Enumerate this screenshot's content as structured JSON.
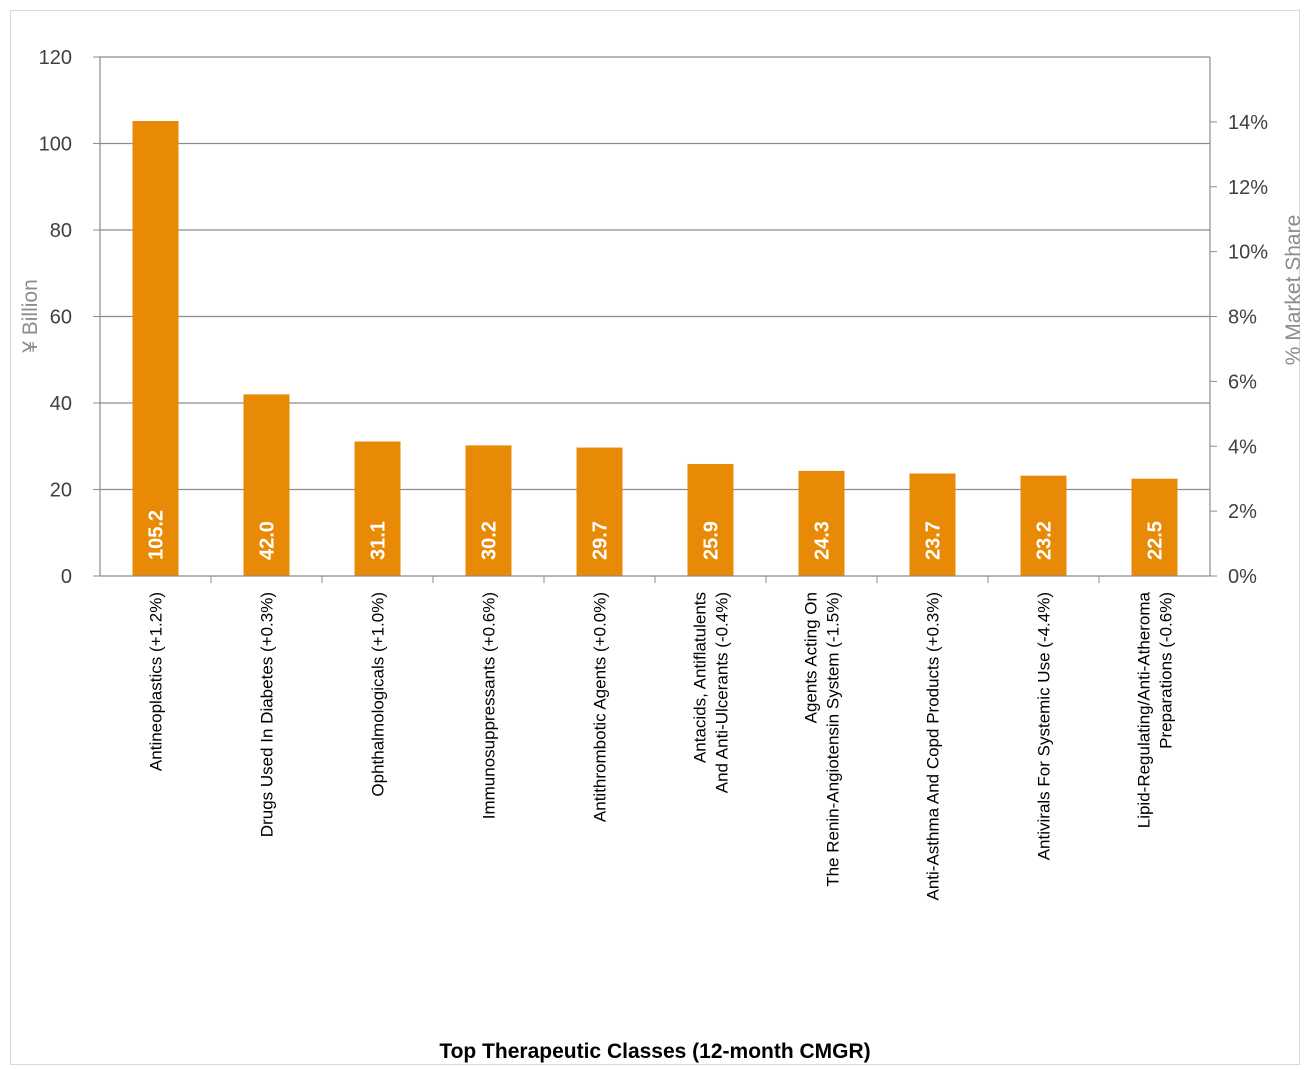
{
  "colors": {
    "bar": "#E98A06",
    "grid": "#8c8c8c",
    "axis_title": "#8c8c8c"
  },
  "chart_data": {
    "type": "bar",
    "title": "",
    "xlabel": "Top Therapeutic Classes (12-month CMGR)",
    "ylabel": "¥ Billion",
    "y2label": "% Market Share",
    "ylim": [
      0,
      120
    ],
    "y_ticks": [
      0,
      20,
      40,
      60,
      80,
      100,
      120
    ],
    "y2lim": [
      0,
      0.16
    ],
    "y2_ticks": [
      "0%",
      "2%",
      "4%",
      "6%",
      "8%",
      "10%",
      "12%",
      "14%"
    ],
    "grid": true,
    "categories": [
      [
        "Antineoplastics (+1.2%)"
      ],
      [
        "Drugs Used In Diabetes (+0.3%)"
      ],
      [
        "Ophthalmologicals (+1.0%)"
      ],
      [
        "Immunosuppressants (+0.6%)"
      ],
      [
        "Antithrombotic Agents (+0.0%)"
      ],
      [
        "Antacids, Antiflatulents",
        "And Anti-Ulcerants (-0.4%)"
      ],
      [
        "Agents Acting On",
        "The Renin-Angiotensin System (-1.5%)"
      ],
      [
        "Anti-Asthma And Copd Products (+0.3%)"
      ],
      [
        "Antivirals For Systemic Use (-4.4%)"
      ],
      [
        "Lipid-Regulating/Anti-Atheroma",
        "Preparations (-0.6%)"
      ]
    ],
    "values": [
      105.2,
      42.0,
      31.1,
      30.2,
      29.7,
      25.9,
      24.3,
      23.7,
      23.2,
      22.5
    ],
    "value_labels": [
      "105.2",
      "42.0",
      "31.1",
      "30.2",
      "29.7",
      "25.9",
      "24.3",
      "23.7",
      "23.2",
      "22.5"
    ]
  }
}
